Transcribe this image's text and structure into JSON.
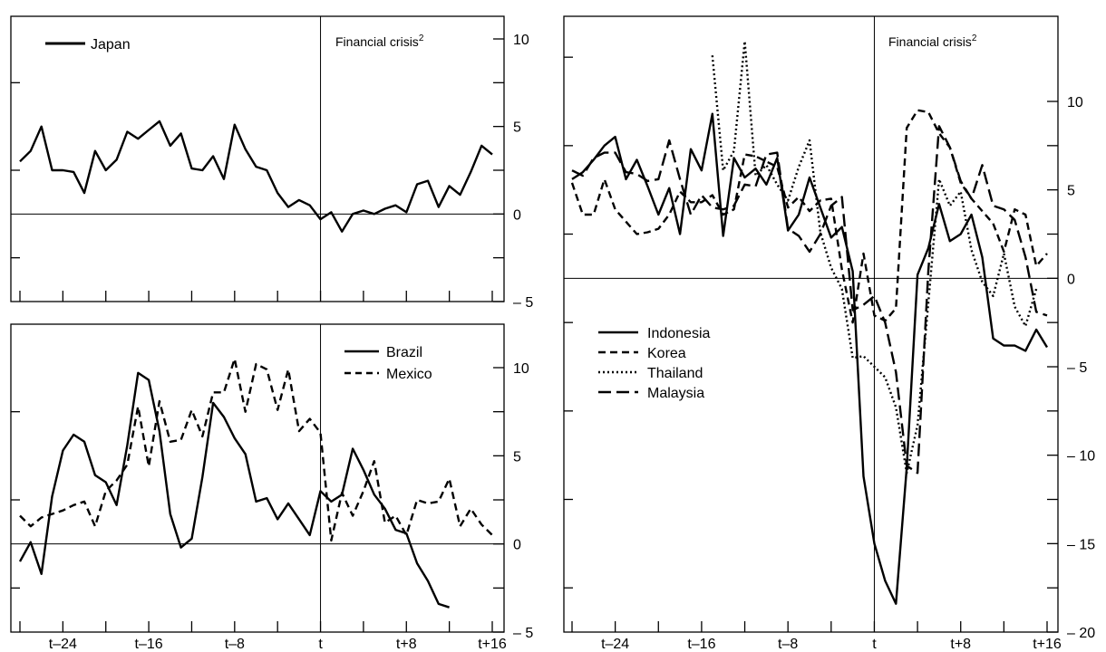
{
  "crisis_label": "Financial crisis",
  "crisis_superscript": "2",
  "x_tick_labels": [
    "t–24",
    "t–16",
    "t–8",
    "t",
    "t+8",
    "t+16"
  ],
  "chart_data": [
    {
      "id": "japan",
      "type": "line",
      "xlim": [
        -28,
        16
      ],
      "ylim": [
        -5,
        10
      ],
      "y_ticks": [
        -5,
        0,
        5,
        10
      ],
      "y_tick_labels": [
        "– 5",
        "0",
        "5",
        "10"
      ],
      "annotation": "Financial crisis",
      "series": [
        {
          "name": "Japan",
          "style": "solid",
          "x": [
            -28,
            -27,
            -26,
            -25,
            -24,
            -23,
            -22,
            -21,
            -20,
            -19,
            -18,
            -17,
            -16,
            -15,
            -14,
            -13,
            -12,
            -11,
            -10,
            -9,
            -8,
            -7,
            -6,
            -5,
            -4,
            -3,
            -2,
            -1,
            0,
            1,
            2,
            3,
            4,
            5,
            6,
            7,
            8,
            9,
            10,
            11,
            12,
            13,
            14,
            15,
            16
          ],
          "y": [
            3.0,
            3.6,
            5.0,
            2.5,
            2.5,
            2.4,
            1.2,
            3.6,
            2.5,
            3.1,
            4.7,
            4.3,
            4.8,
            5.3,
            3.9,
            4.6,
            2.6,
            2.5,
            3.3,
            2.0,
            5.1,
            3.7,
            2.7,
            2.5,
            1.2,
            0.4,
            0.8,
            0.5,
            -0.3,
            0.1,
            -1.0,
            0.0,
            0.2,
            0.0,
            0.3,
            0.5,
            0.1,
            1.7,
            1.9,
            0.4,
            1.6,
            1.1,
            2.4,
            3.9,
            3.4
          ]
        }
      ]
    },
    {
      "id": "latin-america",
      "type": "line",
      "xlim": [
        -28,
        16
      ],
      "ylim": [
        -5,
        10
      ],
      "y_ticks": [
        -5,
        0,
        5,
        10
      ],
      "y_tick_labels": [
        "– 5",
        "0",
        "5",
        "10"
      ],
      "legend": "top-right",
      "series": [
        {
          "name": "Brazil",
          "style": "solid",
          "x": [
            -28,
            -27,
            -26,
            -25,
            -24,
            -23,
            -22,
            -21,
            -20,
            -19,
            -18,
            -17,
            -16,
            -15,
            -14,
            -13,
            -12,
            -11,
            -10,
            -9,
            -8,
            -7,
            -6,
            -5,
            -4,
            -3,
            -2,
            -1,
            0,
            1,
            2,
            3,
            4,
            5,
            6,
            7,
            8,
            9,
            10,
            11,
            12
          ],
          "y": [
            -1.0,
            0.1,
            -1.7,
            2.7,
            5.3,
            6.2,
            5.8,
            3.9,
            3.5,
            2.2,
            5.6,
            9.7,
            9.3,
            6.4,
            1.7,
            -0.2,
            0.3,
            3.8,
            8.0,
            7.2,
            6.0,
            5.1,
            2.4,
            2.6,
            1.4,
            2.3,
            1.4,
            0.5,
            3.0,
            2.4,
            2.8,
            5.4,
            4.2,
            2.8,
            2.0,
            0.8,
            0.6,
            -1.1,
            -2.1,
            -3.4,
            -3.6
          ]
        },
        {
          "name": "Mexico",
          "style": "dashed",
          "x": [
            -28,
            -27,
            -26,
            -25,
            -24,
            -23,
            -22,
            -21,
            -20,
            -19,
            -18,
            -17,
            -16,
            -15,
            -14,
            -13,
            -12,
            -11,
            -10,
            -9,
            -8,
            -7,
            -6,
            -5,
            -4,
            -3,
            -2,
            -1,
            0,
            1,
            2,
            3,
            4,
            5,
            6,
            7,
            8,
            9,
            10,
            11,
            12,
            13,
            14,
            15,
            16
          ],
          "y": [
            1.6,
            1.0,
            1.5,
            1.7,
            1.9,
            2.2,
            2.4,
            1.0,
            3.0,
            3.6,
            4.5,
            7.8,
            4.4,
            8.1,
            5.8,
            5.9,
            7.6,
            6.1,
            8.6,
            8.6,
            10.5,
            7.5,
            10.2,
            9.9,
            7.6,
            9.9,
            6.4,
            7.1,
            6.3,
            0.2,
            2.9,
            1.6,
            3.0,
            4.7,
            1.2,
            1.6,
            0.5,
            2.5,
            2.3,
            2.4,
            3.7,
            1.0,
            2.0,
            1.1,
            0.5
          ]
        }
      ]
    },
    {
      "id": "east-asia",
      "type": "line",
      "xlim": [
        -28,
        16
      ],
      "ylim": [
        -20,
        15
      ],
      "y_ticks": [
        -20,
        -15,
        -10,
        -5,
        0,
        5,
        10
      ],
      "y_tick_labels": [
        "– 20",
        "– 15",
        "– 10",
        "– 5",
        "0",
        "5",
        "10"
      ],
      "annotation": "Financial crisis",
      "legend": "lower-left",
      "series": [
        {
          "name": "Indonesia",
          "style": "solid",
          "x": [
            -28,
            -27,
            -26,
            -25,
            -24,
            -23,
            -22,
            -21,
            -20,
            -19,
            -18,
            -17,
            -16,
            -15,
            -14,
            -13,
            -12,
            -11,
            -10,
            -9,
            -8,
            -7,
            -6,
            -5,
            -4,
            -3,
            -2,
            -1,
            0,
            1,
            2,
            3,
            4,
            5,
            6,
            7,
            8,
            9,
            10,
            11,
            12,
            13,
            14,
            15,
            16
          ],
          "y": [
            5.6,
            6.0,
            6.7,
            7.5,
            8.0,
            5.6,
            6.7,
            5.2,
            3.6,
            5.1,
            2.5,
            7.3,
            6.1,
            9.3,
            2.4,
            6.8,
            5.7,
            6.2,
            5.3,
            6.8,
            2.7,
            3.6,
            5.7,
            4.0,
            2.3,
            2.9,
            0.4,
            -11.2,
            -15.0,
            -17.1,
            -18.4,
            -10.7,
            0.2,
            1.7,
            4.2,
            2.1,
            2.5,
            3.6,
            1.2,
            -3.4,
            -3.8,
            -3.8,
            -4.1,
            -2.9,
            -3.9
          ]
        },
        {
          "name": "Korea",
          "style": "dashed",
          "x": [
            -28,
            -27,
            -26,
            -25,
            -24,
            -23,
            -22,
            -21,
            -20,
            -19,
            -18,
            -17,
            -16,
            -15,
            -14,
            -13,
            -12,
            -11,
            -10,
            -9,
            -8,
            -7,
            -6,
            -5,
            -4,
            -3,
            -2,
            -1,
            0,
            1,
            2,
            3,
            4,
            5,
            6,
            7,
            8,
            9,
            10,
            11,
            12,
            13,
            14,
            15,
            16
          ],
          "y": [
            5.4,
            3.6,
            3.6,
            5.6,
            3.9,
            3.2,
            2.5,
            2.6,
            2.8,
            3.6,
            4.9,
            4.3,
            4.3,
            4.7,
            3.6,
            3.9,
            7.0,
            6.9,
            6.6,
            6.3,
            4.0,
            4.6,
            3.8,
            4.4,
            4.5,
            0.5,
            -2.5,
            1.4,
            -2.1,
            -2.4,
            -1.7,
            8.5,
            9.5,
            9.4,
            8.2,
            7.4,
            5.4,
            4.5,
            3.8,
            3.1,
            1.5,
            3.9,
            3.6,
            0.7,
            1.4
          ]
        },
        {
          "name": "Thailand",
          "style": "dotted",
          "x": [
            -15,
            -14,
            -13,
            -12,
            -11,
            -10,
            -9,
            -8,
            -7,
            -6,
            -5,
            -4,
            -3,
            -2,
            -1,
            0,
            1,
            2,
            3,
            4,
            5,
            6,
            7,
            8,
            9,
            10,
            11,
            12,
            13,
            14,
            15
          ],
          "y": [
            12.6,
            6.1,
            7.2,
            13.4,
            5.8,
            6.4,
            5.3,
            4.4,
            6.3,
            7.8,
            2.6,
            0.6,
            -0.6,
            -4.5,
            -4.4,
            -5.0,
            -5.6,
            -7.3,
            -11.0,
            -8.3,
            -1.4,
            5.6,
            4.1,
            4.9,
            1.6,
            -0.2,
            -1.0,
            1.4,
            -1.6,
            -2.7,
            -0.6
          ]
        },
        {
          "name": "Malaysia",
          "style": "long-dashed",
          "x": [
            -28,
            -27,
            -26,
            -25,
            -24,
            -23,
            -22,
            -21,
            -20,
            -19,
            -18,
            -17,
            -16,
            -15,
            -14,
            -13,
            -12,
            -11,
            -10,
            -9,
            -8,
            -7,
            -6,
            -5,
            -4,
            -3,
            -2,
            -1,
            0,
            1,
            2,
            3,
            4,
            5,
            6,
            7,
            8,
            9,
            10,
            11,
            12,
            13,
            14,
            15,
            16
          ],
          "y": [
            6.1,
            5.8,
            6.8,
            7.1,
            7.1,
            6.0,
            5.9,
            5.5,
            5.6,
            7.8,
            5.6,
            3.6,
            4.7,
            4.0,
            3.9,
            4.1,
            5.3,
            5.2,
            7.0,
            7.1,
            2.8,
            2.4,
            1.5,
            2.5,
            4.1,
            4.6,
            -1.8,
            -1.5,
            -1.0,
            -2.5,
            -5.3,
            -10.6,
            -11.0,
            0.4,
            8.6,
            7.4,
            5.5,
            4.5,
            6.4,
            4.1,
            3.9,
            3.3,
            1.2,
            -1.9,
            -2.1
          ]
        }
      ]
    }
  ]
}
